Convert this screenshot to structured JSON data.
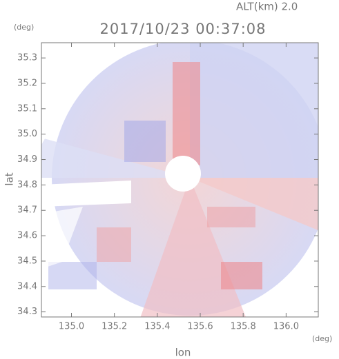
{
  "chart_data": {
    "type": "radar-field",
    "title": "2017/10/23 00:37:08",
    "subtitle": "ALT(km)  2.0",
    "xlabel": "lon",
    "ylabel": "lat",
    "x_unit": "(deg)",
    "y_unit": "(deg)",
    "xlim": [
      134.86,
      136.15
    ],
    "ylim": [
      34.28,
      35.36
    ],
    "xticks": [
      {
        "value": 135,
        "label": "135.0"
      },
      135.2,
      135.4,
      135.6,
      135.8,
      {
        "value": 136,
        "label": "136.0"
      }
    ],
    "yticks": [
      34.3,
      34.4,
      34.5,
      34.6,
      34.7,
      34.8,
      34.9,
      {
        "value": 35,
        "label": "35.0"
      },
      35.1,
      35.2,
      35.3
    ]
  }
}
